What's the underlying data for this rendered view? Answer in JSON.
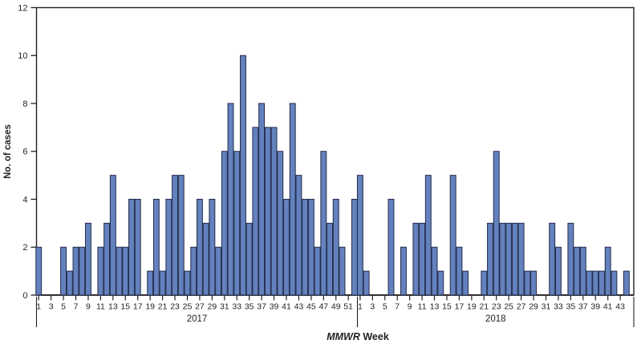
{
  "chart_data": {
    "type": "bar",
    "title": "",
    "ylabel": "No. of cases",
    "xlabel_italic": "MMWR",
    "xlabel_rest": " Week",
    "ylim": [
      0,
      12
    ],
    "yticks": [
      0,
      2,
      4,
      6,
      8,
      10,
      12
    ],
    "grid": false,
    "legend": "none",
    "groups": [
      {
        "year": "2017",
        "first_week": 1,
        "tick_labels": [
          1,
          3,
          5,
          7,
          9,
          11,
          13,
          15,
          17,
          19,
          21,
          23,
          25,
          27,
          29,
          31,
          33,
          35,
          37,
          39,
          41,
          43,
          45,
          47,
          49,
          51
        ],
        "values": [
          2,
          0,
          0,
          0,
          2,
          1,
          2,
          2,
          3,
          0,
          2,
          3,
          5,
          2,
          2,
          4,
          4,
          0,
          1,
          4,
          1,
          4,
          5,
          5,
          1,
          2,
          4,
          3,
          4,
          2,
          6,
          8,
          6,
          10,
          3,
          7,
          8,
          7,
          7,
          6,
          4,
          8,
          5,
          4,
          4,
          2,
          6,
          3,
          4,
          2,
          0,
          4
        ]
      },
      {
        "year": "2018",
        "first_week": 1,
        "tick_labels": [
          1,
          3,
          5,
          7,
          9,
          11,
          13,
          15,
          17,
          19,
          21,
          23,
          25,
          27,
          29,
          31,
          33,
          35,
          37,
          39,
          41,
          43
        ],
        "values": [
          5,
          1,
          0,
          0,
          0,
          4,
          0,
          2,
          0,
          3,
          3,
          5,
          2,
          1,
          0,
          5,
          2,
          1,
          0,
          0,
          1,
          3,
          6,
          3,
          3,
          3,
          3,
          1,
          1,
          0,
          0,
          3,
          2,
          0,
          3,
          2,
          2,
          1,
          1,
          1,
          2,
          1,
          0,
          1
        ]
      }
    ],
    "colors": {
      "bar_fill": "#6382bd",
      "bar_stroke": "#232c4e",
      "axis": "#231f20",
      "text": "#231f20"
    }
  }
}
